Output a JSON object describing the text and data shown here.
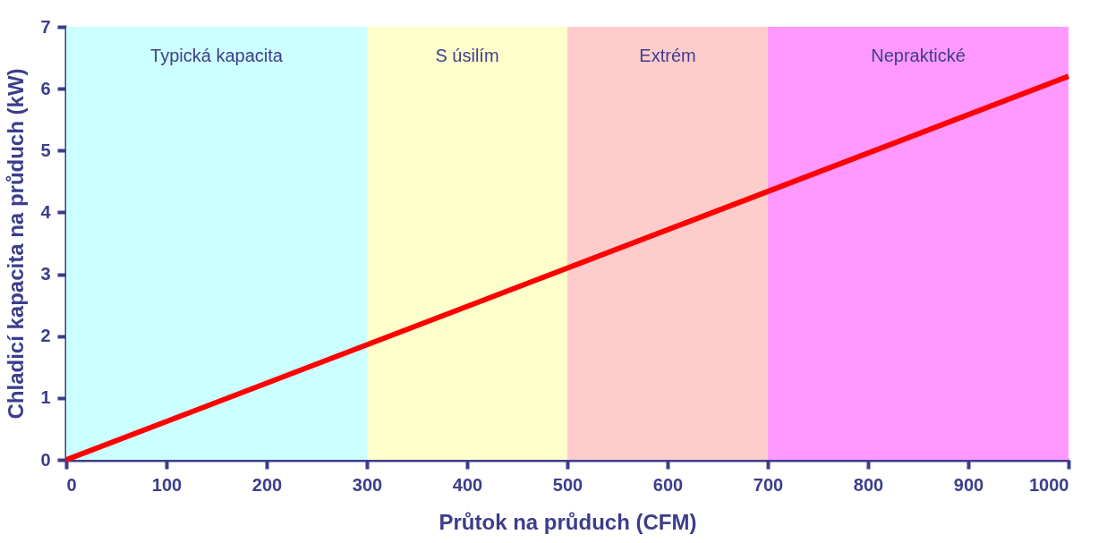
{
  "chart_data": {
    "type": "line",
    "xlabel": "Průtok na průduch (CFM)",
    "ylabel": "Chladicí kapacita na průduch (kW)",
    "series": [
      {
        "color": "#ff0000",
        "x": [
          0,
          1000
        ],
        "values": [
          0,
          6.2
        ]
      }
    ],
    "bands": [
      {
        "axis": "x",
        "from": 0,
        "to": 300,
        "label": "Typická kapacita",
        "color": "#ccffff"
      },
      {
        "axis": "x",
        "from": 300,
        "to": 500,
        "label": "S úsilím",
        "color": "#ffffcc"
      },
      {
        "axis": "x",
        "from": 500,
        "to": 700,
        "label": "Extrém",
        "color": "#ffcccc"
      },
      {
        "axis": "x",
        "from": 700,
        "to": 1000,
        "label": "Nepraktické",
        "color": "#ff99ff"
      }
    ],
    "xlim": [
      0,
      1000
    ],
    "xticks": [
      0,
      100,
      200,
      300,
      400,
      500,
      600,
      700,
      800,
      900,
      1000
    ],
    "ylim": [
      0,
      7
    ],
    "yticks": [
      0,
      1,
      2,
      3,
      4,
      5,
      6,
      7
    ],
    "grid": false,
    "line_style": "solid"
  }
}
